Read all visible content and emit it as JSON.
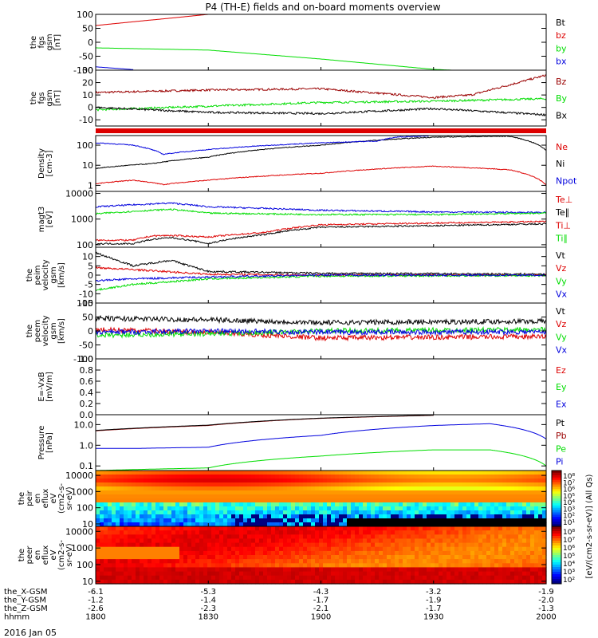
{
  "title": "P4 (TH-E) fields and on-board moments overview",
  "date_label": "2016 Jan 05",
  "colors": {
    "black": "#000000",
    "red": "#dd0000",
    "darkred": "#9a0000",
    "green": "#00dd00",
    "blue": "#0000dd",
    "axis": "#000000"
  },
  "chart_data": [
    {
      "type": "line",
      "name": "fgs-gsm",
      "ylabel": [
        "the",
        "fgs",
        "gsm",
        "[nT]"
      ],
      "ylim": [
        -100,
        100
      ],
      "yticks": [
        "100",
        "50",
        "0",
        "-50",
        "-100"
      ],
      "legend": [
        {
          "label": "Bt",
          "color": "black"
        },
        {
          "label": "bz",
          "color": "red"
        },
        {
          "label": "by",
          "color": "green"
        },
        {
          "label": "bx",
          "color": "blue"
        }
      ],
      "series": [
        {
          "label": "bz",
          "color": "red",
          "x": [
            1800,
            1830
          ],
          "y": [
            60,
            100
          ]
        },
        {
          "label": "by",
          "color": "green",
          "x": [
            1800,
            1830,
            1900,
            1930,
            1935
          ],
          "y": [
            -20,
            -28,
            -60,
            -97,
            -100
          ]
        },
        {
          "label": "bx",
          "color": "blue",
          "x": [
            1800,
            1810
          ],
          "y": [
            -88,
            -98
          ]
        }
      ]
    },
    {
      "type": "line",
      "name": "fgs-gsm-zoom",
      "ylabel": [
        "the",
        "fgs",
        "gsm",
        "[nT]"
      ],
      "ylim": [
        -15,
        30
      ],
      "yticks": [
        "30",
        "20",
        "10",
        "0",
        "-10"
      ],
      "legend": [
        {
          "label": "Bz",
          "color": "darkred"
        },
        {
          "label": "By",
          "color": "green"
        },
        {
          "label": "Bx",
          "color": "black"
        }
      ],
      "series": [
        {
          "label": "Bz",
          "color": "darkred",
          "x": [
            1800,
            1830,
            1900,
            1930,
            1940,
            2000
          ],
          "y": [
            12,
            14,
            15,
            8,
            10,
            26
          ]
        },
        {
          "label": "By",
          "color": "green",
          "x": [
            1800,
            1830,
            1900,
            1930,
            2000
          ],
          "y": [
            -2,
            1,
            4,
            5,
            7
          ]
        },
        {
          "label": "Bx",
          "color": "black",
          "x": [
            1800,
            1830,
            1900,
            1930,
            2000
          ],
          "y": [
            0,
            -4,
            -5,
            -1,
            -6
          ]
        }
      ]
    },
    {
      "type": "line",
      "name": "density",
      "ylabel": [
        "Density",
        "[cm-3]"
      ],
      "scale": "log",
      "ylim": [
        0.5,
        300
      ],
      "yticks": [
        "100",
        "10",
        "1"
      ],
      "legend": [
        {
          "label": "Ne",
          "color": "red"
        },
        {
          "label": "Ni",
          "color": "black"
        },
        {
          "label": "Npot",
          "color": "blue"
        }
      ],
      "series": [
        {
          "label": "Ne",
          "color": "red",
          "x": [
            1800,
            1810,
            1818,
            1830,
            1900,
            1930,
            1950,
            2000
          ],
          "y": [
            1.2,
            1.8,
            1.1,
            1.8,
            4,
            9,
            6,
            1.0
          ]
        },
        {
          "label": "Ni",
          "color": "black",
          "x": [
            1800,
            1815,
            1830,
            1900,
            1930,
            1950,
            2000
          ],
          "y": [
            7,
            12,
            25,
            100,
            250,
            280,
            55
          ]
        },
        {
          "label": "Npot",
          "color": "blue",
          "x": [
            1800,
            1810,
            1818,
            1830,
            1900,
            1915,
            1920,
            1930
          ],
          "y": [
            130,
            100,
            35,
            60,
            130,
            160,
            250,
            300
          ]
        }
      ]
    },
    {
      "type": "line",
      "name": "temperature",
      "ylabel": [
        "magt3",
        "[eV]"
      ],
      "scale": "log",
      "ylim": [
        80,
        12000
      ],
      "yticks": [
        "10000",
        "1000",
        "100"
      ],
      "legend": [
        {
          "label": "Te⊥",
          "color": "red"
        },
        {
          "label": "Te∥",
          "color": "black"
        },
        {
          "label": "Ti⊥",
          "color": "red"
        },
        {
          "label": "Ti∥",
          "color": "green"
        }
      ],
      "series": [
        {
          "label": "Ti",
          "color": "blue",
          "x": [
            1800,
            1820,
            1830,
            1900,
            1930,
            2000
          ],
          "y": [
            3000,
            4200,
            3000,
            2200,
            1900,
            1800
          ]
        },
        {
          "label": "Ti∥",
          "color": "green",
          "x": [
            1800,
            1820,
            1830,
            1900,
            1930,
            2000
          ],
          "y": [
            1600,
            2400,
            1700,
            1500,
            1500,
            1700
          ]
        },
        {
          "label": "Te⊥",
          "color": "red",
          "x": [
            1800,
            1810,
            1815,
            1820,
            1830,
            1845,
            1900,
            1930,
            2000
          ],
          "y": [
            150,
            150,
            220,
            230,
            200,
            300,
            600,
            700,
            800
          ]
        },
        {
          "label": "Te∥",
          "color": "black",
          "x": [
            1800,
            1810,
            1815,
            1820,
            1830,
            1845,
            1900,
            1930,
            2000
          ],
          "y": [
            110,
            110,
            160,
            190,
            110,
            250,
            480,
            550,
            650
          ]
        }
      ]
    },
    {
      "type": "line",
      "name": "peim-velocity",
      "ylabel": [
        "the",
        "peim",
        "velocity",
        "gsm",
        "[km/s]"
      ],
      "ylim": [
        -15,
        15
      ],
      "yticks": [
        "10",
        "5",
        "0",
        "-5",
        "-10",
        "-15"
      ],
      "legend": [
        {
          "label": "Vt",
          "color": "black"
        },
        {
          "label": "Vz",
          "color": "red"
        },
        {
          "label": "Vy",
          "color": "green"
        },
        {
          "label": "Vx",
          "color": "blue"
        }
      ],
      "series": [
        {
          "label": "Vt",
          "color": "black",
          "x": [
            1800,
            1810,
            1820,
            1830,
            1900,
            2000
          ],
          "y": [
            12,
            5,
            8,
            2,
            1,
            0.5
          ]
        },
        {
          "label": "Vz",
          "color": "red",
          "x": [
            1800,
            1810,
            1830,
            1900,
            2000
          ],
          "y": [
            4,
            3,
            0.5,
            0,
            0
          ]
        },
        {
          "label": "Vy",
          "color": "green",
          "x": [
            1800,
            1810,
            1830,
            1900,
            2000
          ],
          "y": [
            -8,
            -5,
            -2,
            -0.5,
            -0.2
          ]
        },
        {
          "label": "Vx",
          "color": "blue",
          "x": [
            1800,
            1810,
            1830,
            1900,
            2000
          ],
          "y": [
            -3,
            -2,
            -1,
            0,
            0
          ]
        }
      ]
    },
    {
      "type": "line",
      "name": "peem-velocity",
      "ylabel": [
        "the",
        "peem",
        "velocity",
        "gsm",
        "[km/s]"
      ],
      "ylim": [
        -100,
        100
      ],
      "yticks": [
        "100",
        "50",
        "0",
        "-50",
        "-100"
      ],
      "legend": [
        {
          "label": "Vt",
          "color": "black"
        },
        {
          "label": "Vz",
          "color": "red"
        },
        {
          "label": "Vy",
          "color": "green"
        },
        {
          "label": "Vx",
          "color": "blue"
        }
      ],
      "series": [
        {
          "label": "Vt",
          "color": "black",
          "x": [
            1800,
            1830,
            1900,
            2000
          ],
          "y": [
            45,
            40,
            30,
            35
          ]
        },
        {
          "label": "Vz",
          "color": "red",
          "x": [
            1800,
            1830,
            1900,
            2000
          ],
          "y": [
            5,
            -5,
            -25,
            -20
          ]
        },
        {
          "label": "Vy",
          "color": "green",
          "x": [
            1800,
            1830,
            1900,
            2000
          ],
          "y": [
            -15,
            -10,
            0,
            5
          ]
        },
        {
          "label": "Vx",
          "color": "blue",
          "x": [
            1800,
            1830,
            1900,
            2000
          ],
          "y": [
            -5,
            0,
            -5,
            -3
          ]
        }
      ]
    },
    {
      "type": "line",
      "name": "efield",
      "ylabel": [
        "E=-VxB",
        "[mV/m]"
      ],
      "ylim": [
        0,
        1
      ],
      "yticks": [
        "1.0",
        "0.8",
        "0.6",
        "0.4",
        "0.2",
        "0.0"
      ],
      "legend": [
        {
          "label": "Ez",
          "color": "red"
        },
        {
          "label": "Ey",
          "color": "green"
        },
        {
          "label": "Ex",
          "color": "blue"
        }
      ],
      "series": []
    },
    {
      "type": "line",
      "name": "pressure",
      "ylabel": [
        "Pressure",
        "[nPa]"
      ],
      "scale": "log",
      "ylim": [
        0.06,
        30
      ],
      "yticks": [
        "10.0",
        "1.0",
        "0.1"
      ],
      "legend": [
        {
          "label": "Pt",
          "color": "black"
        },
        {
          "label": "Pb",
          "color": "darkred"
        },
        {
          "label": "Pe",
          "color": "green"
        },
        {
          "label": "Pi",
          "color": "blue"
        }
      ],
      "series": [
        {
          "label": "Pb",
          "color": "darkred",
          "x": [
            1800,
            1830,
            1900,
            1930
          ],
          "y": [
            5,
            9,
            20,
            28
          ]
        },
        {
          "label": "Pt",
          "color": "black",
          "x": [
            1800,
            1830,
            1900,
            1930
          ],
          "y": [
            5.2,
            9.4,
            20.5,
            28.5
          ]
        },
        {
          "label": "Pi",
          "color": "blue",
          "x": [
            1800,
            1810,
            1830,
            1900,
            1930,
            1945,
            2000
          ],
          "y": [
            0.7,
            0.7,
            0.8,
            3,
            9,
            11,
            2
          ]
        },
        {
          "label": "Pe",
          "color": "green",
          "x": [
            1800,
            1830,
            1900,
            1930,
            1945,
            2000
          ],
          "y": [
            0.06,
            0.08,
            0.3,
            0.6,
            0.6,
            0.1
          ]
        }
      ]
    },
    {
      "type": "heatmap",
      "name": "peir-spectrogram",
      "ylabel": [
        "the",
        "peir",
        "en",
        "eflux",
        "eV",
        "(cm2-s-",
        "sr-eV)"
      ],
      "yticks": [
        "10000",
        "1000",
        "100",
        "10"
      ],
      "colorbar_ticks": [
        "10⁸",
        "10⁷",
        "10⁶",
        "10⁵",
        "10⁴",
        "10³",
        "10²",
        "10¹"
      ]
    },
    {
      "type": "heatmap",
      "name": "peer-spectrogram",
      "ylabel": [
        "the",
        "peer",
        "en",
        "eflux",
        "eV",
        "(cm2-s-",
        "sr-eV)"
      ],
      "yticks": [
        "10000",
        "1000",
        "100",
        "10"
      ],
      "colorbar_ticks": [
        "10⁸",
        "10⁷",
        "10⁶",
        "10⁵",
        "10⁴",
        "10³",
        "10²"
      ]
    }
  ],
  "colorbar_label": "[eV/(cm2-s-sr-eV)] (All Qs)",
  "x_axis": {
    "rows": [
      {
        "label": "the_X-GSM",
        "values": [
          "-6.1",
          "-5.3",
          "-4.3",
          "-3.2",
          "-1.9"
        ]
      },
      {
        "label": "the_Y-GSM",
        "values": [
          "-1.2",
          "-1.4",
          "-1.7",
          "-1.9",
          "-2.0"
        ]
      },
      {
        "label": "the_Z-GSM",
        "values": [
          "-2.6",
          "-2.3",
          "-2.1",
          "-1.7",
          "-1.3"
        ]
      },
      {
        "label": "hhmm",
        "values": [
          "1800",
          "1830",
          "1900",
          "1930",
          "2000"
        ]
      }
    ],
    "time_ticks": [
      1800,
      1830,
      1900,
      1930,
      2000
    ]
  }
}
